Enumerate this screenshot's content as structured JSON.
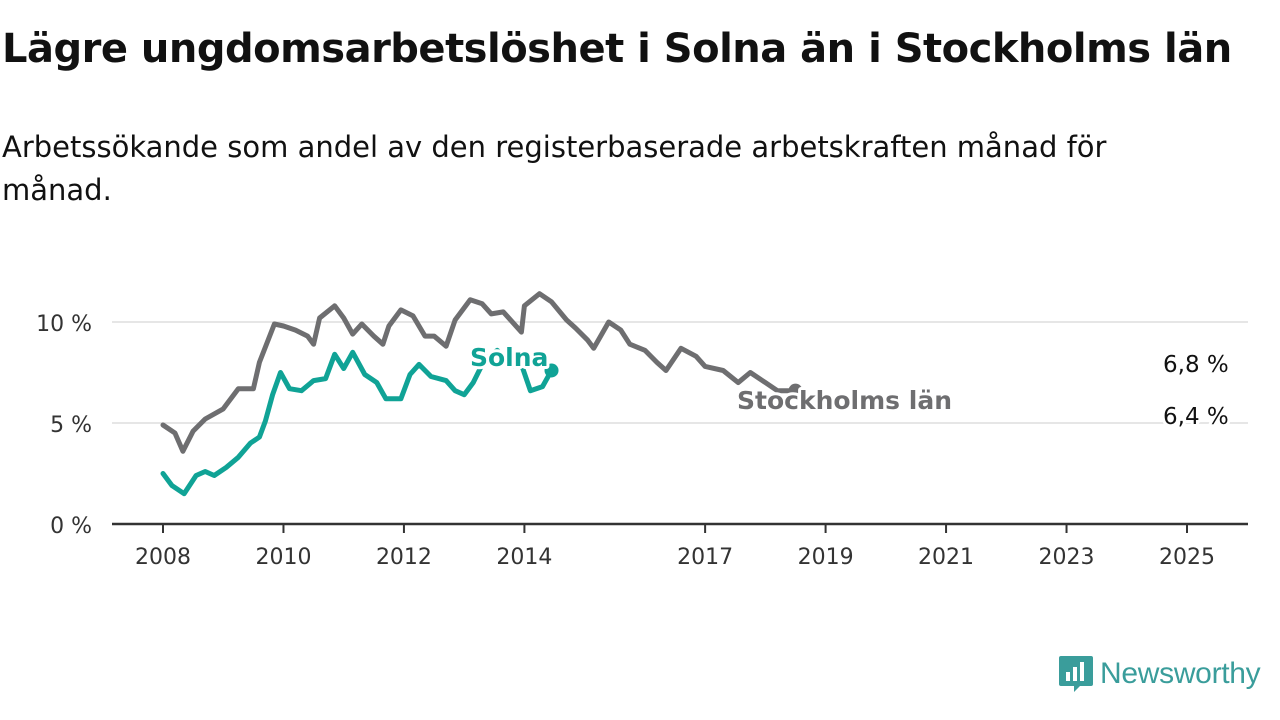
{
  "title": "Lägre ungdomsarbetslöshet i Solna än i Stockholms län",
  "subtitle": "Arbetssökande som andel av den registerbaserade arbetskraften månad för månad.",
  "brand": "Newsworthy",
  "colors": {
    "solna": "#10a396",
    "stockholm": "#6e6e70",
    "grid": "#dddddd",
    "axis": "#333333",
    "brand": "#3a9d9b"
  },
  "chart_data": {
    "type": "line",
    "xlim": [
      2008,
      2025.5
    ],
    "ylim": [
      0,
      12
    ],
    "y_ticks": [
      {
        "value": 0,
        "label": "0 %"
      },
      {
        "value": 5,
        "label": "5 %"
      },
      {
        "value": 10,
        "label": "10 %"
      }
    ],
    "x_ticks": [
      {
        "value": 2008,
        "label": "2008"
      },
      {
        "value": 2010,
        "label": "2010"
      },
      {
        "value": 2012,
        "label": "2012"
      },
      {
        "value": 2014,
        "label": "2014"
      },
      {
        "value": 2017,
        "label": "2017"
      },
      {
        "value": 2019,
        "label": "2019"
      },
      {
        "value": 2021,
        "label": "2021"
      },
      {
        "value": 2023,
        "label": "2023"
      },
      {
        "value": 2025,
        "label": "2025"
      }
    ],
    "grid": "horizontal",
    "series": [
      {
        "name": "Stockholms län",
        "color": "#6e6e70",
        "end_label": "6,8 %",
        "points": [
          [
            2008,
            4.9
          ],
          [
            2008.2,
            4.5
          ],
          [
            2008.33,
            3.6
          ],
          [
            2008.5,
            4.6
          ],
          [
            2008.7,
            5.2
          ],
          [
            2009.0,
            5.7
          ],
          [
            2009.25,
            6.7
          ],
          [
            2009.5,
            6.7
          ],
          [
            2009.6,
            8.0
          ],
          [
            2009.85,
            9.9
          ],
          [
            2010.0,
            9.8
          ],
          [
            2010.2,
            9.6
          ],
          [
            2010.4,
            9.3
          ],
          [
            2010.5,
            8.9
          ],
          [
            2010.6,
            10.2
          ],
          [
            2010.85,
            10.8
          ],
          [
            2011.0,
            10.2
          ],
          [
            2011.15,
            9.4
          ],
          [
            2011.3,
            9.9
          ],
          [
            2011.5,
            9.3
          ],
          [
            2011.65,
            8.9
          ],
          [
            2011.75,
            9.8
          ],
          [
            2011.95,
            10.6
          ],
          [
            2012.15,
            10.3
          ],
          [
            2012.35,
            9.3
          ],
          [
            2012.5,
            9.3
          ],
          [
            2012.7,
            8.8
          ],
          [
            2012.85,
            10.1
          ],
          [
            2013.1,
            11.1
          ],
          [
            2013.3,
            10.9
          ],
          [
            2013.45,
            10.4
          ],
          [
            2013.65,
            10.5
          ],
          [
            2013.95,
            9.5
          ],
          [
            2014.0,
            10.8
          ],
          [
            2014.25,
            11.4
          ],
          [
            2014.45,
            11.0
          ],
          [
            2014.7,
            10.1
          ],
          [
            2014.85,
            9.7
          ],
          [
            2015.05,
            9.1
          ],
          [
            2015.15,
            8.7
          ],
          [
            2015.4,
            10.0
          ],
          [
            2015.6,
            9.6
          ],
          [
            2015.75,
            8.9
          ],
          [
            2016.0,
            8.6
          ],
          [
            2016.2,
            8.0
          ],
          [
            2016.35,
            7.6
          ],
          [
            2016.6,
            8.7
          ],
          [
            2016.85,
            8.3
          ],
          [
            2017.0,
            7.8
          ],
          [
            2017.3,
            7.6
          ],
          [
            2017.55,
            7.0
          ],
          [
            2017.75,
            7.5
          ],
          [
            2018.0,
            7.0
          ],
          [
            2018.2,
            6.6
          ],
          [
            2018.5,
            6.6
          ]
        ]
      },
      {
        "name": "Solna",
        "color": "#10a396",
        "end_label": "6,4 %",
        "points": [
          [
            2008,
            2.5
          ],
          [
            2008.15,
            1.9
          ],
          [
            2008.35,
            1.5
          ],
          [
            2008.55,
            2.4
          ],
          [
            2008.7,
            2.6
          ],
          [
            2008.85,
            2.4
          ],
          [
            2009.05,
            2.8
          ],
          [
            2009.25,
            3.3
          ],
          [
            2009.45,
            4.0
          ],
          [
            2009.6,
            4.3
          ],
          [
            2009.7,
            5.1
          ],
          [
            2009.82,
            6.4
          ],
          [
            2009.95,
            7.5
          ],
          [
            2010.1,
            6.7
          ],
          [
            2010.3,
            6.6
          ],
          [
            2010.5,
            7.1
          ],
          [
            2010.7,
            7.2
          ],
          [
            2010.85,
            8.4
          ],
          [
            2011.0,
            7.7
          ],
          [
            2011.15,
            8.5
          ],
          [
            2011.35,
            7.4
          ],
          [
            2011.55,
            7.0
          ],
          [
            2011.7,
            6.2
          ],
          [
            2011.95,
            6.2
          ],
          [
            2012.1,
            7.4
          ],
          [
            2012.25,
            7.9
          ],
          [
            2012.45,
            7.3
          ],
          [
            2012.7,
            7.1
          ],
          [
            2012.85,
            6.6
          ],
          [
            2013.0,
            6.4
          ],
          [
            2013.15,
            7.0
          ],
          [
            2013.35,
            8.2
          ],
          [
            2013.55,
            8.6
          ],
          [
            2013.75,
            7.8
          ],
          [
            2013.95,
            7.9
          ],
          [
            2014.1,
            6.6
          ],
          [
            2014.3,
            6.8
          ],
          [
            2014.45,
            7.6
          ]
        ]
      }
    ],
    "annotations": [
      {
        "text": "Solna",
        "series": "Solna"
      },
      {
        "text": "Stockholms län",
        "series": "Stockholms län"
      }
    ]
  }
}
